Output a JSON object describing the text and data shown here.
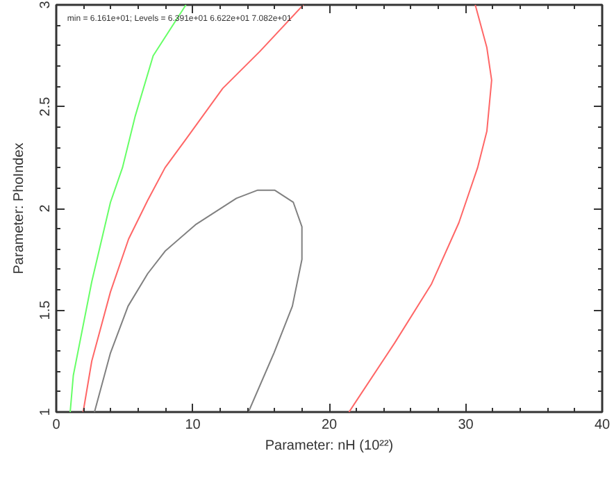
{
  "chart_data": {
    "type": "line",
    "xlabel": "Parameter: nH (10²²)",
    "ylabel": "Parameter: PhoIndex",
    "annotations": [
      "min = 6.161e+01; Levels =  6.391e+01 6.622e+01 7.082e+01"
    ],
    "xlim": [
      0,
      40
    ],
    "ylim": [
      1,
      3
    ],
    "xticks": [
      0,
      10,
      20,
      30,
      40
    ],
    "yticks": [
      1,
      1.5,
      2,
      2.5,
      3
    ],
    "grid": false,
    "marker": "none",
    "line_style": "solid",
    "series": [
      {
        "color": "#808080",
        "x": [
          2.8,
          3.97,
          5.26,
          6.7,
          7.97,
          10.2,
          13.2,
          14.76,
          16.0,
          17.37,
          18.0,
          18.0,
          17.3,
          15.95,
          14.08
        ],
        "values": [
          1,
          1.29,
          1.52,
          1.68,
          1.79,
          1.92,
          2.05,
          2.09,
          2.09,
          2.03,
          1.91,
          1.75,
          1.52,
          1.29,
          1
        ]
      },
      {
        "color": "#ff6666",
        "x": [
          1.97,
          2.6,
          3.97,
          5.3,
          6.7,
          7.97,
          9.5,
          12.2,
          14.9,
          18.1
        ],
        "values": [
          1,
          1.25,
          1.59,
          1.85,
          2.04,
          2.2,
          2.34,
          2.59,
          2.77,
          3
        ]
      },
      {
        "color": "#ff6666",
        "x": [
          21.45,
          24.8,
          27.5,
          29.5,
          30.87,
          31.55,
          31.9,
          31.55,
          30.7
        ],
        "values": [
          1,
          1.34,
          1.63,
          1.93,
          2.2,
          2.38,
          2.63,
          2.79,
          3
        ]
      },
      {
        "color": "#66ff66",
        "x": [
          1.02,
          1.25,
          2.6,
          3.97,
          4.85,
          5.77,
          7.1,
          9.5
        ],
        "values": [
          1,
          1.18,
          1.64,
          2.03,
          2.2,
          2.45,
          2.75,
          3
        ]
      }
    ]
  }
}
